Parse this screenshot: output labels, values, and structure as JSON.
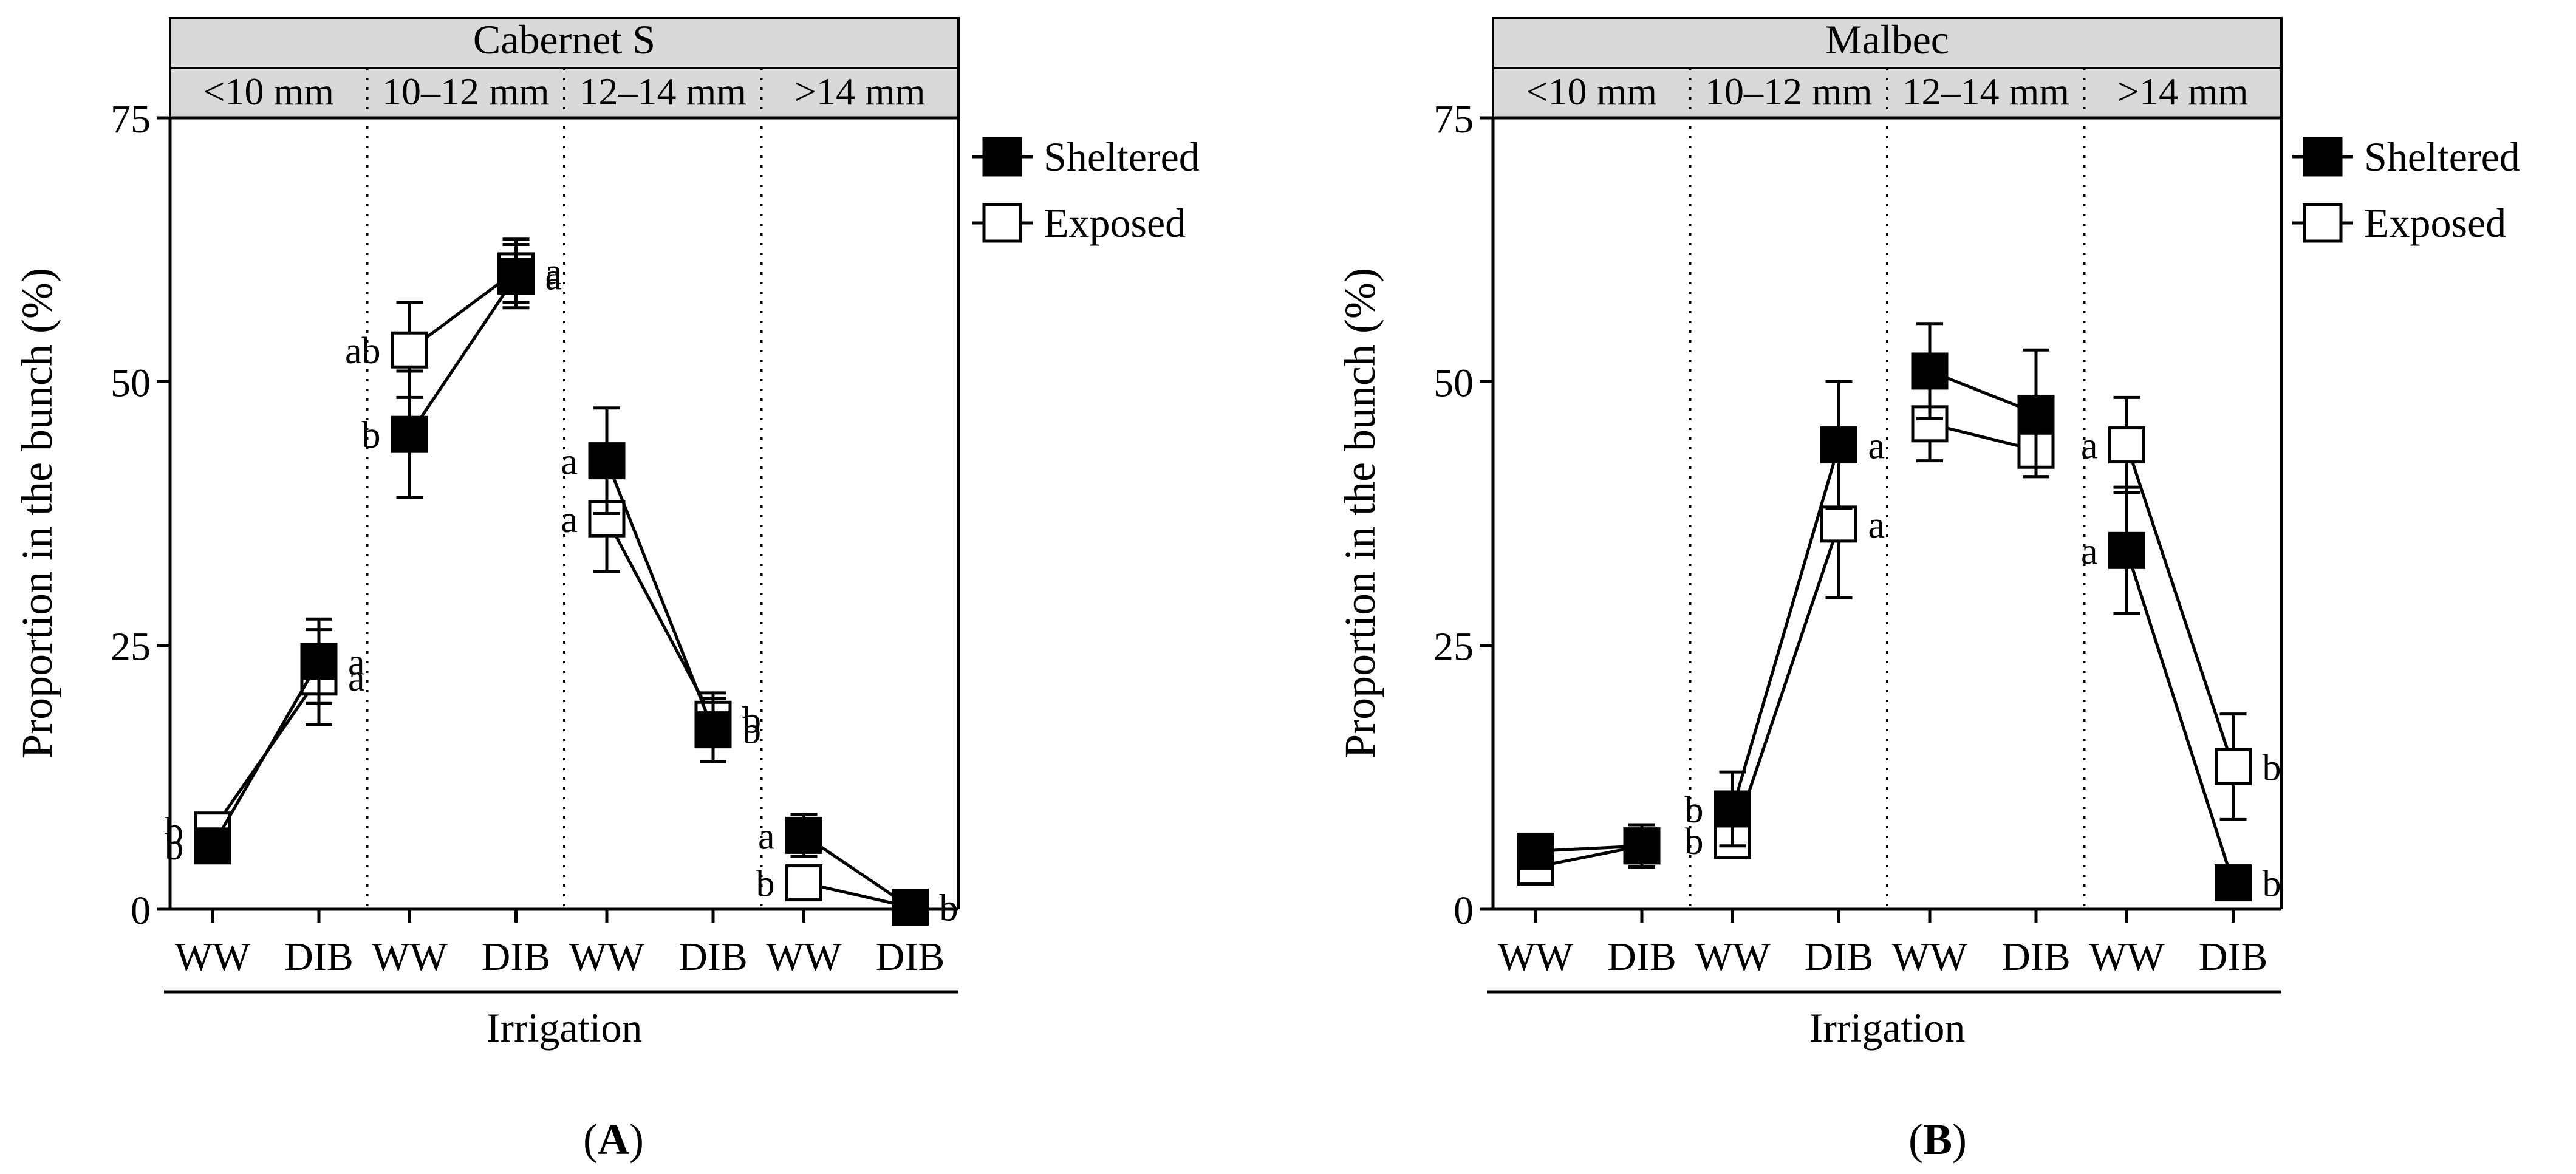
{
  "legend": {
    "sheltered": "Sheltered",
    "exposed": "Exposed"
  },
  "shared": {
    "ylabel": "Proportion in the bunch (%)",
    "xlabel": "Irrigation",
    "categories": [
      "WW",
      "DIB"
    ],
    "size_classes": [
      "<10 mm",
      "10–12 mm",
      "12–14 mm",
      ">14 mm"
    ],
    "yticks": [
      0,
      25,
      50,
      75
    ],
    "ylim": [
      0,
      75
    ]
  },
  "chart_data": [
    {
      "type": "line",
      "panel_label": "A",
      "title": "Cabernet S",
      "ylabel": "Proportion in the bunch (%)",
      "xlabel": "Irrigation",
      "ylim": [
        0,
        75
      ],
      "groups": [
        {
          "size_class": "<10 mm",
          "sheltered": {
            "values": [
              6,
              23.5
            ],
            "err": [
              1,
              4
            ],
            "letters": [
              "b",
              "a"
            ]
          },
          "exposed": {
            "values": [
              7.5,
              22
            ],
            "err": [
              1.5,
              4.5
            ],
            "letters": [
              "b",
              "a"
            ]
          }
        },
        {
          "size_class": "10–12 mm",
          "sheltered": {
            "values": [
              45,
              60
            ],
            "err": [
              6,
              3
            ],
            "letters": [
              "b",
              "a"
            ]
          },
          "exposed": {
            "values": [
              53,
              60.5
            ],
            "err": [
              4.5,
              3
            ],
            "letters": [
              "ab",
              "a"
            ]
          }
        },
        {
          "size_class": "12–14 mm",
          "sheltered": {
            "values": [
              42.5,
              17
            ],
            "err": [
              5,
              3
            ],
            "letters": [
              "a",
              "b"
            ]
          },
          "exposed": {
            "values": [
              37,
              18
            ],
            "err": [
              5,
              2.5
            ],
            "letters": [
              "a",
              "b"
            ]
          }
        },
        {
          "size_class": ">14 mm",
          "sheltered": {
            "values": [
              7,
              0.2
            ],
            "err": [
              2,
              0.5
            ],
            "letters": [
              "a",
              "b"
            ]
          },
          "exposed": {
            "values": [
              2.5,
              0.2
            ],
            "err": [
              1,
              0.5
            ],
            "letters": [
              "b",
              "b"
            ]
          }
        }
      ]
    },
    {
      "type": "line",
      "panel_label": "B",
      "title": "Malbec",
      "ylabel": "Proportion in the bunch (%)",
      "xlabel": "Irrigation",
      "ylim": [
        0,
        75
      ],
      "groups": [
        {
          "size_class": "<10 mm",
          "sheltered": {
            "values": [
              5.5,
              6
            ],
            "err": [
              1,
              1.5
            ],
            "letters": [
              "",
              ""
            ]
          },
          "exposed": {
            "values": [
              4,
              6
            ],
            "err": [
              1,
              2
            ],
            "letters": [
              "",
              ""
            ]
          }
        },
        {
          "size_class": "10–12 mm",
          "sheltered": {
            "values": [
              9.5,
              44
            ],
            "err": [
              3.5,
              6
            ],
            "letters": [
              "b",
              "a"
            ]
          },
          "exposed": {
            "values": [
              6.5,
              36.5
            ],
            "err": [
              1.5,
              7
            ],
            "letters": [
              "b",
              "a"
            ]
          }
        },
        {
          "size_class": "12–14 mm",
          "sheltered": {
            "values": [
              51,
              47
            ],
            "err": [
              4.5,
              6
            ],
            "letters": [
              "",
              ""
            ]
          },
          "exposed": {
            "values": [
              46,
              43.5
            ],
            "err": [
              3.5,
              2.5
            ],
            "letters": [
              "",
              ""
            ]
          }
        },
        {
          "size_class": ">14 mm",
          "sheltered": {
            "values": [
              34,
              2.5
            ],
            "err": [
              6,
              0.5
            ],
            "letters": [
              "a",
              "b"
            ]
          },
          "exposed": {
            "values": [
              44,
              13.5
            ],
            "err": [
              4.5,
              5
            ],
            "letters": [
              "a",
              "b"
            ]
          }
        }
      ]
    }
  ]
}
